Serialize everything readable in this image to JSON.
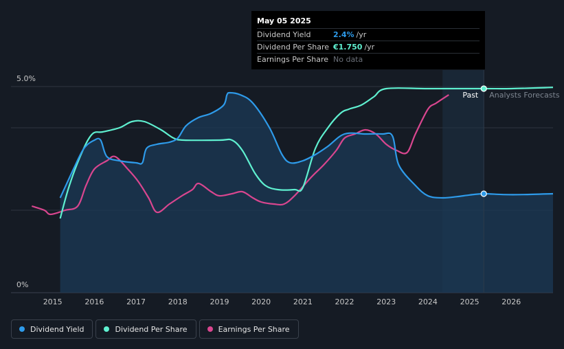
{
  "tooltip": {
    "date": "May 05 2025",
    "rows": [
      {
        "label": "Dividend Yield",
        "value": "2.4%",
        "suffix": "/yr",
        "color": "#2e9bea"
      },
      {
        "label": "Dividend Per Share",
        "value": "€1.750",
        "suffix": "/yr",
        "color": "#5ff0d0"
      },
      {
        "label": "Earnings Per Share",
        "value": "No data",
        "suffix": "",
        "color": "#6b7079"
      }
    ]
  },
  "legend": [
    {
      "label": "Dividend Yield",
      "color": "#2e9bea"
    },
    {
      "label": "Dividend Per Share",
      "color": "#5ff0d0"
    },
    {
      "label": "Earnings Per Share",
      "color": "#d9468f"
    }
  ],
  "chart_data": {
    "type": "line",
    "y_tick_labels": [
      "5.0%",
      "0%"
    ],
    "x_tick_labels": [
      "2015",
      "2016",
      "2017",
      "2018",
      "2019",
      "2020",
      "2021",
      "2022",
      "2023",
      "2024",
      "2025",
      "2026"
    ],
    "past_label": "Past",
    "forecast_label": "Analysts Forecasts",
    "cursor_date": 2025.34,
    "forecast_band_start": 2024.35,
    "xlim": [
      2014.0,
      2027.0
    ],
    "ylim": [
      0,
      5.0
    ],
    "colors": {
      "yield": "#2e9bea",
      "dps": "#5ff0d0",
      "eps": "#d9468f",
      "area_fill": "#1b3a55",
      "grid": "#2f3540",
      "axis_text": "#c8c8c8"
    },
    "series": [
      {
        "name": "Dividend Yield",
        "key": "yield",
        "points": [
          [
            2015.18,
            2.3
          ],
          [
            2015.5,
            3.0
          ],
          [
            2015.75,
            3.5
          ],
          [
            2016.0,
            3.7
          ],
          [
            2016.15,
            3.7
          ],
          [
            2016.3,
            3.3
          ],
          [
            2016.6,
            3.2
          ],
          [
            2017.0,
            3.15
          ],
          [
            2017.15,
            3.15
          ],
          [
            2017.25,
            3.5
          ],
          [
            2017.5,
            3.6
          ],
          [
            2017.8,
            3.65
          ],
          [
            2018.0,
            3.75
          ],
          [
            2018.2,
            4.05
          ],
          [
            2018.5,
            4.25
          ],
          [
            2018.8,
            4.35
          ],
          [
            2019.1,
            4.55
          ],
          [
            2019.18,
            4.8
          ],
          [
            2019.25,
            4.85
          ],
          [
            2019.5,
            4.8
          ],
          [
            2019.8,
            4.6
          ],
          [
            2020.2,
            4.0
          ],
          [
            2020.5,
            3.35
          ],
          [
            2020.7,
            3.15
          ],
          [
            2021.0,
            3.2
          ],
          [
            2021.3,
            3.35
          ],
          [
            2021.6,
            3.55
          ],
          [
            2022.0,
            3.85
          ],
          [
            2022.5,
            3.85
          ],
          [
            2022.9,
            3.85
          ],
          [
            2023.15,
            3.8
          ],
          [
            2023.3,
            3.1
          ],
          [
            2023.7,
            2.6
          ],
          [
            2024.0,
            2.35
          ],
          [
            2024.35,
            2.3
          ],
          [
            2024.7,
            2.33
          ],
          [
            2025.0,
            2.37
          ],
          [
            2025.34,
            2.4
          ],
          [
            2025.8,
            2.38
          ],
          [
            2026.3,
            2.38
          ],
          [
            2027.0,
            2.4
          ]
        ]
      },
      {
        "name": "Dividend Per Share",
        "key": "dps",
        "points": [
          [
            2015.18,
            1.8
          ],
          [
            2015.4,
            2.6
          ],
          [
            2015.7,
            3.4
          ],
          [
            2015.95,
            3.85
          ],
          [
            2016.2,
            3.9
          ],
          [
            2016.6,
            4.0
          ],
          [
            2016.9,
            4.15
          ],
          [
            2017.2,
            4.15
          ],
          [
            2017.6,
            3.95
          ],
          [
            2017.9,
            3.75
          ],
          [
            2018.15,
            3.7
          ],
          [
            2019.0,
            3.7
          ],
          [
            2019.3,
            3.7
          ],
          [
            2019.55,
            3.45
          ],
          [
            2019.85,
            2.9
          ],
          [
            2020.1,
            2.6
          ],
          [
            2020.4,
            2.5
          ],
          [
            2020.8,
            2.5
          ],
          [
            2021.0,
            2.55
          ],
          [
            2021.3,
            3.5
          ],
          [
            2021.6,
            4.0
          ],
          [
            2021.9,
            4.35
          ],
          [
            2022.1,
            4.45
          ],
          [
            2022.4,
            4.55
          ],
          [
            2022.7,
            4.75
          ],
          [
            2023.0,
            4.95
          ],
          [
            2024.0,
            4.95
          ],
          [
            2025.34,
            4.95
          ],
          [
            2026.0,
            4.95
          ],
          [
            2027.0,
            4.98
          ]
        ]
      },
      {
        "name": "Earnings Per Share",
        "key": "eps",
        "points": [
          [
            2014.5,
            2.1
          ],
          [
            2014.8,
            2.0
          ],
          [
            2014.95,
            1.9
          ],
          [
            2015.3,
            2.0
          ],
          [
            2015.6,
            2.1
          ],
          [
            2015.8,
            2.6
          ],
          [
            2016.0,
            3.0
          ],
          [
            2016.3,
            3.2
          ],
          [
            2016.5,
            3.3
          ],
          [
            2016.8,
            3.0
          ],
          [
            2017.05,
            2.7
          ],
          [
            2017.3,
            2.3
          ],
          [
            2017.5,
            1.95
          ],
          [
            2017.8,
            2.15
          ],
          [
            2018.1,
            2.35
          ],
          [
            2018.35,
            2.5
          ],
          [
            2018.5,
            2.65
          ],
          [
            2018.8,
            2.45
          ],
          [
            2019.0,
            2.35
          ],
          [
            2019.3,
            2.4
          ],
          [
            2019.55,
            2.45
          ],
          [
            2019.8,
            2.3
          ],
          [
            2020.0,
            2.2
          ],
          [
            2020.3,
            2.15
          ],
          [
            2020.55,
            2.15
          ],
          [
            2020.8,
            2.35
          ],
          [
            2021.2,
            2.8
          ],
          [
            2021.5,
            3.1
          ],
          [
            2021.8,
            3.45
          ],
          [
            2022.0,
            3.75
          ],
          [
            2022.25,
            3.85
          ],
          [
            2022.5,
            3.95
          ],
          [
            2022.75,
            3.85
          ],
          [
            2023.0,
            3.6
          ],
          [
            2023.25,
            3.45
          ],
          [
            2023.5,
            3.4
          ],
          [
            2023.7,
            3.85
          ],
          [
            2024.0,
            4.45
          ],
          [
            2024.2,
            4.6
          ],
          [
            2024.5,
            4.8
          ]
        ]
      }
    ]
  }
}
